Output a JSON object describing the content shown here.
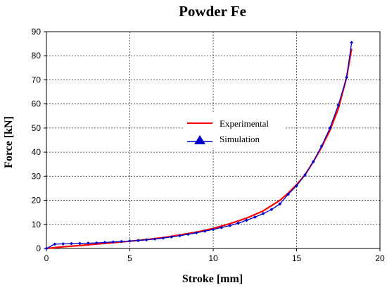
{
  "chart_data": {
    "type": "line",
    "title": "Powder Fe",
    "xlabel": "Stroke [mm]",
    "ylabel": "Force [kN]",
    "xlim": [
      0,
      20
    ],
    "ylim": [
      0,
      90
    ],
    "xticks": [
      0,
      5,
      10,
      15,
      20
    ],
    "yticks": [
      0,
      10,
      20,
      30,
      40,
      50,
      60,
      70,
      80,
      90
    ],
    "grid": true,
    "legend_position": "center",
    "series": [
      {
        "name": "Experimental",
        "color": "#ff0000",
        "marker": "none",
        "x": [
          0,
          1,
          2,
          3,
          4,
          5,
          6,
          7,
          8,
          9,
          10,
          11,
          12,
          13,
          14,
          14.5,
          15,
          15.5,
          16,
          16.5,
          17,
          17.5,
          18,
          18.3
        ],
        "y": [
          0,
          0.7,
          1.2,
          1.8,
          2.4,
          3.0,
          3.7,
          4.5,
          5.6,
          6.8,
          8.3,
          10.3,
          12.6,
          15.6,
          20.0,
          23.0,
          26.5,
          30.5,
          36.0,
          42.0,
          49.0,
          58.0,
          71.0,
          83.0
        ]
      },
      {
        "name": "Simulation",
        "color": "#0000cc",
        "marker": "diamond",
        "x": [
          0,
          0.5,
          1,
          1.5,
          2,
          2.5,
          3,
          3.5,
          4,
          4.5,
          5,
          5.5,
          6,
          6.5,
          7,
          7.5,
          8,
          8.5,
          9,
          9.5,
          10,
          10.5,
          11,
          11.5,
          12,
          12.5,
          13,
          13.5,
          14,
          14.5,
          15,
          15.5,
          16,
          16.5,
          17,
          17.5,
          18,
          18.3
        ],
        "y": [
          0,
          1.8,
          1.9,
          2.0,
          2.1,
          2.2,
          2.3,
          2.5,
          2.7,
          2.9,
          3.1,
          3.3,
          3.6,
          3.9,
          4.3,
          4.8,
          5.3,
          5.9,
          6.5,
          7.2,
          7.9,
          8.7,
          9.5,
          10.5,
          11.7,
          13.0,
          14.5,
          16.2,
          18.5,
          22.5,
          26.0,
          30.5,
          36.0,
          42.5,
          50.0,
          59.5,
          71.0,
          85.5
        ]
      }
    ]
  }
}
